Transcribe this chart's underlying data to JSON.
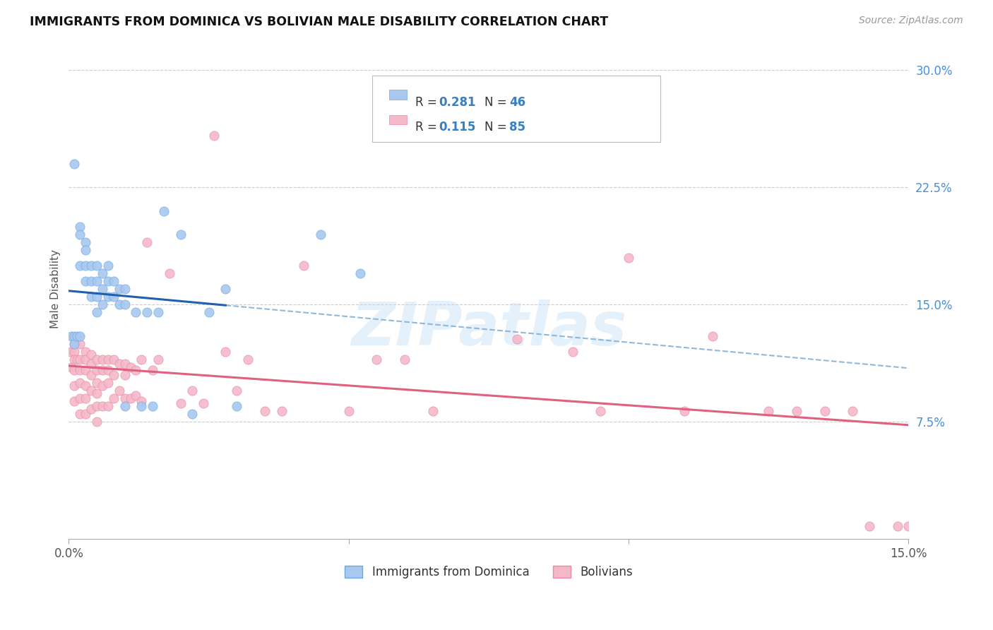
{
  "title": "IMMIGRANTS FROM DOMINICA VS BOLIVIAN MALE DISABILITY CORRELATION CHART",
  "source": "Source: ZipAtlas.com",
  "ylabel": "Male Disability",
  "xlim": [
    0.0,
    0.15
  ],
  "ylim": [
    0.0,
    0.32
  ],
  "ytick_vals": [
    0.075,
    0.15,
    0.225,
    0.3
  ],
  "ytick_labels": [
    "7.5%",
    "15.0%",
    "22.5%",
    "30.0%"
  ],
  "watermark": "ZIPatlas",
  "series1_color": "#a8c8f0",
  "series1_edge": "#6aaae0",
  "series2_color": "#f5b8c8",
  "series2_edge": "#e888a8",
  "trendline1_color": "#2060b0",
  "trendline2_color": "#e06080",
  "dashed_line_color": "#90b8d8",
  "legend_label1": "Immigrants from Dominica",
  "legend_label2": "Bolivians",
  "R1": "0.281",
  "N1": "46",
  "R2": "0.115",
  "N2": "85",
  "s1x": [
    0.0005,
    0.001,
    0.001,
    0.001,
    0.0015,
    0.002,
    0.002,
    0.002,
    0.002,
    0.003,
    0.003,
    0.003,
    0.003,
    0.004,
    0.004,
    0.004,
    0.005,
    0.005,
    0.005,
    0.005,
    0.006,
    0.006,
    0.006,
    0.007,
    0.007,
    0.007,
    0.008,
    0.008,
    0.009,
    0.009,
    0.01,
    0.01,
    0.01,
    0.012,
    0.013,
    0.014,
    0.015,
    0.016,
    0.017,
    0.02,
    0.022,
    0.025,
    0.028,
    0.03,
    0.045,
    0.052
  ],
  "s1y": [
    0.13,
    0.24,
    0.13,
    0.125,
    0.13,
    0.2,
    0.195,
    0.175,
    0.13,
    0.19,
    0.185,
    0.175,
    0.165,
    0.175,
    0.165,
    0.155,
    0.175,
    0.165,
    0.155,
    0.145,
    0.17,
    0.16,
    0.15,
    0.175,
    0.165,
    0.155,
    0.165,
    0.155,
    0.16,
    0.15,
    0.16,
    0.15,
    0.085,
    0.145,
    0.085,
    0.145,
    0.085,
    0.145,
    0.21,
    0.195,
    0.08,
    0.145,
    0.16,
    0.085,
    0.195,
    0.17
  ],
  "s2x": [
    0.0003,
    0.0005,
    0.001,
    0.001,
    0.001,
    0.001,
    0.001,
    0.001,
    0.0015,
    0.002,
    0.002,
    0.002,
    0.002,
    0.002,
    0.002,
    0.003,
    0.003,
    0.003,
    0.003,
    0.003,
    0.003,
    0.004,
    0.004,
    0.004,
    0.004,
    0.004,
    0.005,
    0.005,
    0.005,
    0.005,
    0.005,
    0.005,
    0.006,
    0.006,
    0.006,
    0.006,
    0.007,
    0.007,
    0.007,
    0.007,
    0.008,
    0.008,
    0.008,
    0.009,
    0.009,
    0.01,
    0.01,
    0.01,
    0.011,
    0.011,
    0.012,
    0.012,
    0.013,
    0.013,
    0.014,
    0.015,
    0.016,
    0.018,
    0.02,
    0.022,
    0.024,
    0.026,
    0.028,
    0.03,
    0.032,
    0.035,
    0.038,
    0.042,
    0.05,
    0.055,
    0.06,
    0.065,
    0.08,
    0.09,
    0.095,
    0.1,
    0.11,
    0.115,
    0.125,
    0.13,
    0.135,
    0.14,
    0.143,
    0.148,
    0.15
  ],
  "s2y": [
    0.12,
    0.11,
    0.125,
    0.12,
    0.115,
    0.108,
    0.098,
    0.088,
    0.115,
    0.125,
    0.115,
    0.108,
    0.1,
    0.09,
    0.08,
    0.12,
    0.115,
    0.108,
    0.098,
    0.09,
    0.08,
    0.118,
    0.112,
    0.105,
    0.095,
    0.083,
    0.115,
    0.108,
    0.1,
    0.093,
    0.085,
    0.075,
    0.115,
    0.108,
    0.098,
    0.085,
    0.115,
    0.108,
    0.1,
    0.085,
    0.115,
    0.105,
    0.09,
    0.112,
    0.095,
    0.112,
    0.105,
    0.09,
    0.11,
    0.09,
    0.108,
    0.092,
    0.115,
    0.088,
    0.19,
    0.108,
    0.115,
    0.17,
    0.087,
    0.095,
    0.087,
    0.258,
    0.12,
    0.095,
    0.115,
    0.082,
    0.082,
    0.175,
    0.082,
    0.115,
    0.115,
    0.082,
    0.128,
    0.12,
    0.082,
    0.18,
    0.082,
    0.13,
    0.082,
    0.082,
    0.082,
    0.082,
    0.008,
    0.008,
    0.008
  ]
}
